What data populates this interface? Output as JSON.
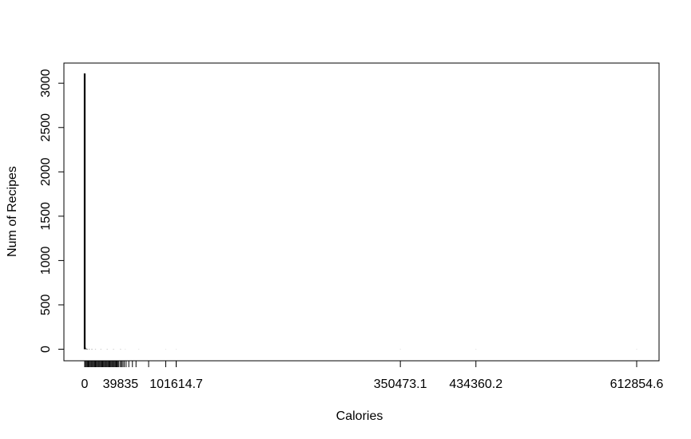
{
  "chart_data": {
    "type": "bar",
    "title": "",
    "xlabel": "Calories",
    "ylabel": "Num of Recipes",
    "xlim": [
      0,
      612854.6
    ],
    "ylim": [
      0,
      3110
    ],
    "grid": false,
    "x_tick_labels": [
      {
        "value": 0,
        "label": "0"
      },
      {
        "value": 39835,
        "label": "39835"
      },
      {
        "value": 101614.7,
        "label": "101614.7"
      },
      {
        "value": 350473.1,
        "label": "350473.1"
      },
      {
        "value": 434360.2,
        "label": "434360.2"
      },
      {
        "value": 612854.6,
        "label": "612854.6"
      }
    ],
    "y_ticks": [
      0,
      500,
      1000,
      1500,
      2000,
      2500,
      3000
    ],
    "rug_values": [
      1000,
      2000,
      3000,
      4000,
      5000,
      6000,
      7000,
      8000,
      9000,
      10000,
      11000,
      12000,
      13000,
      14000,
      15000,
      16000,
      17000,
      18000,
      19000,
      20000,
      21000,
      22000,
      23000,
      24000,
      25000,
      26000,
      27000,
      28000,
      29000,
      30000,
      31000,
      32000,
      33000,
      34000,
      35000,
      36000,
      37000,
      38000,
      39835,
      41000,
      42500,
      44000,
      46000,
      49000,
      53000,
      57000,
      71000,
      90000,
      101614.7
    ],
    "series": [
      {
        "x": [
          0,
          200,
          400,
          600,
          800,
          1000,
          1500,
          2000,
          3000,
          5000,
          8000,
          12000,
          18000,
          25000,
          32000,
          39835,
          45000,
          60000,
          90000,
          101614.7,
          350473.1,
          434360.2,
          612854.6
        ],
        "values": [
          3110,
          60,
          30,
          18,
          12,
          8,
          6,
          5,
          4,
          3,
          3,
          2,
          2,
          2,
          2,
          2,
          1,
          1,
          1,
          1,
          1,
          1,
          1
        ]
      }
    ]
  }
}
